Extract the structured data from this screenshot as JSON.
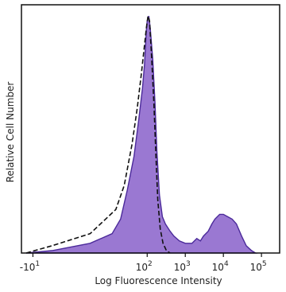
{
  "chart_data": {
    "type": "area",
    "title": "",
    "xlabel": "Log Fluorescence Intensity",
    "ylabel": "Relative Cell Number",
    "x_scale": "biexponential-log",
    "grid": false,
    "xlim": [
      -20,
      300000
    ],
    "ylim": [
      0,
      100
    ],
    "x_ticks": [
      {
        "value": -10,
        "label": "-10",
        "exp": "1"
      },
      {
        "value": 100,
        "label": "10",
        "exp": "2"
      },
      {
        "value": 1000,
        "label": "10",
        "exp": "3"
      },
      {
        "value": 10000,
        "label": "10",
        "exp": "4"
      },
      {
        "value": 100000,
        "label": "10",
        "exp": "5"
      }
    ],
    "series": [
      {
        "style": "filled",
        "color": "#9a78d2",
        "edge_color": "#4b2a9a",
        "points": [
          [
            -15,
            0
          ],
          [
            -5,
            1
          ],
          [
            5,
            4
          ],
          [
            12,
            8
          ],
          [
            20,
            14
          ],
          [
            30,
            26
          ],
          [
            45,
            40
          ],
          [
            60,
            55
          ],
          [
            75,
            68
          ],
          [
            85,
            78
          ],
          [
            95,
            92
          ],
          [
            100,
            96
          ],
          [
            110,
            98
          ],
          [
            120,
            93
          ],
          [
            140,
            80
          ],
          [
            160,
            62
          ],
          [
            180,
            42
          ],
          [
            210,
            24
          ],
          [
            250,
            15
          ],
          [
            300,
            12
          ],
          [
            400,
            9
          ],
          [
            500,
            7
          ],
          [
            700,
            5
          ],
          [
            1000,
            4
          ],
          [
            1500,
            4
          ],
          [
            2000,
            6
          ],
          [
            2500,
            5
          ],
          [
            3000,
            7
          ],
          [
            4000,
            9
          ],
          [
            5000,
            12
          ],
          [
            6000,
            14
          ],
          [
            8000,
            16
          ],
          [
            10000,
            16
          ],
          [
            13000,
            15
          ],
          [
            17000,
            14
          ],
          [
            22000,
            12
          ],
          [
            30000,
            7
          ],
          [
            40000,
            3
          ],
          [
            55000,
            1
          ],
          [
            70000,
            0
          ]
        ]
      },
      {
        "style": "dashed",
        "color": "#111111",
        "points": [
          [
            -15,
            0
          ],
          [
            -5,
            3
          ],
          [
            5,
            8
          ],
          [
            15,
            18
          ],
          [
            25,
            28
          ],
          [
            40,
            45
          ],
          [
            55,
            60
          ],
          [
            70,
            74
          ],
          [
            85,
            86
          ],
          [
            95,
            93
          ],
          [
            105,
            98
          ],
          [
            115,
            96
          ],
          [
            130,
            82
          ],
          [
            150,
            62
          ],
          [
            170,
            40
          ],
          [
            190,
            22
          ],
          [
            220,
            10
          ],
          [
            260,
            4
          ],
          [
            320,
            1
          ],
          [
            400,
            0
          ]
        ]
      }
    ]
  }
}
